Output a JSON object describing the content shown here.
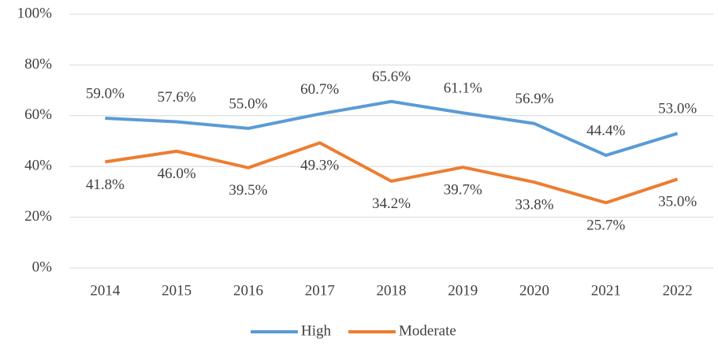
{
  "chart_data": {
    "type": "line",
    "categories": [
      "2014",
      "2015",
      "2016",
      "2017",
      "2018",
      "2019",
      "2020",
      "2021",
      "2022"
    ],
    "series": [
      {
        "name": "High",
        "color": "#5b9bd5",
        "values": [
          59.0,
          57.6,
          55.0,
          60.7,
          65.6,
          61.1,
          56.9,
          44.4,
          53.0
        ],
        "value_labels": [
          "59.0%",
          "57.6%",
          "55.0%",
          "60.7%",
          "65.6%",
          "61.1%",
          "56.9%",
          "44.4%",
          "53.0%"
        ]
      },
      {
        "name": "Moderate",
        "color": "#ed7d31",
        "values": [
          41.8,
          46.0,
          39.5,
          49.3,
          34.2,
          39.7,
          33.8,
          25.7,
          35.0
        ],
        "value_labels": [
          "41.8%",
          "46.0%",
          "39.5%",
          "49.3%",
          "34.2%",
          "39.7%",
          "33.8%",
          "25.7%",
          "35.0%"
        ]
      }
    ],
    "ylim": [
      0,
      100
    ],
    "yticks": [
      {
        "value": 0,
        "label": "0%"
      },
      {
        "value": 20,
        "label": "20%"
      },
      {
        "value": 40,
        "label": "40%"
      },
      {
        "value": 60,
        "label": "60%"
      },
      {
        "value": 80,
        "label": "80%"
      },
      {
        "value": 100,
        "label": "100%"
      }
    ],
    "grid": true,
    "legend": "bottom"
  }
}
